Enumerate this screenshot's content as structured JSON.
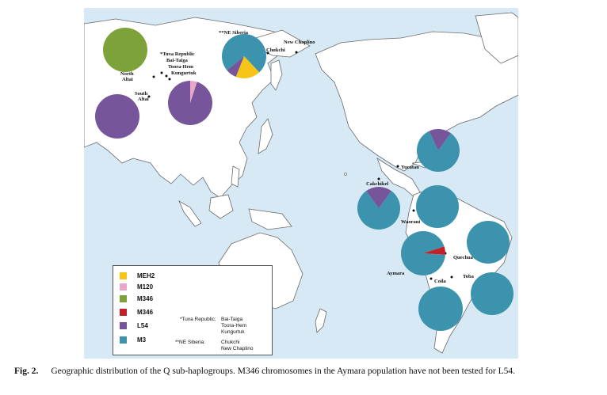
{
  "colors": {
    "sea": "#d6e9f5",
    "land": "#ffffff",
    "MEH2": "#f5c518",
    "M120": "#e8a6c9",
    "M346_green": "#7ea23a",
    "M346_red": "#c4202a",
    "L54": "#76559a",
    "M3": "#3c93ad"
  },
  "places": {
    "ne_siberia": "**NE Siberia",
    "new_chaplino": "New Chaplino",
    "chukchi": "Chukchi",
    "tuva": "*Tuva Republic",
    "bai_taiga": "Bai-Taiga",
    "toora_hem": "Toora-Hem",
    "kungurtuk": "Kungurtuk",
    "north_altai_1": "North",
    "north_altai_2": "Altai",
    "south_altai_1": "South",
    "south_altai_2": "Altai",
    "yucatan": "Yucatan",
    "cakchikel": "Cakchikel",
    "waorani": "Waorani",
    "quechua": "Quechua",
    "aymara": "Aymara",
    "coila": "Coila",
    "toba": "Toba"
  },
  "pies": [
    {
      "id": "north-altai",
      "slices": [
        {
          "group": "M346",
          "value": 1.0
        }
      ]
    },
    {
      "id": "south-altai",
      "slices": [
        {
          "group": "L54",
          "value": 1.0
        }
      ]
    },
    {
      "id": "tuva",
      "slices": [
        {
          "group": "L54",
          "value": 0.95
        },
        {
          "group": "M120",
          "value": 0.05
        }
      ]
    },
    {
      "id": "ne-siberia",
      "slices": [
        {
          "group": "M3",
          "value": 0.74
        },
        {
          "group": "MEH2",
          "value": 0.18
        },
        {
          "group": "L54",
          "value": 0.08
        }
      ]
    },
    {
      "id": "yucatan",
      "slices": [
        {
          "group": "M3",
          "value": 0.83
        },
        {
          "group": "L54",
          "value": 0.17
        }
      ]
    },
    {
      "id": "cakchikel",
      "slices": [
        {
          "group": "M3",
          "value": 0.8
        },
        {
          "group": "L54",
          "value": 0.2
        }
      ]
    },
    {
      "id": "waorani",
      "slices": [
        {
          "group": "M3",
          "value": 1.0
        }
      ]
    },
    {
      "id": "quechua",
      "slices": [
        {
          "group": "M3",
          "value": 1.0
        }
      ]
    },
    {
      "id": "aymara",
      "slices": [
        {
          "group": "M3",
          "value": 0.94
        },
        {
          "group": "M346",
          "value": 0.06
        }
      ]
    },
    {
      "id": "toba",
      "slices": [
        {
          "group": "M3",
          "value": 1.0
        }
      ]
    },
    {
      "id": "coila",
      "slices": [
        {
          "group": "M3",
          "value": 1.0
        }
      ]
    }
  ],
  "legend": {
    "items": [
      {
        "label": "MEH2",
        "color": "#f5c518"
      },
      {
        "label": "M120",
        "color": "#e8a6c9"
      },
      {
        "label": "M346",
        "color": "#7ea23a"
      },
      {
        "label": "M346",
        "color": "#c4202a"
      },
      {
        "label": "L54",
        "color": "#76559a"
      },
      {
        "label": "M3",
        "color": "#3c93ad"
      }
    ],
    "tuva_key": "*Tuva Republic:",
    "tuva_value": "Bai-Taiga\nToora-Hem\nKungurtuk",
    "ne_key": "**NE Siberia:",
    "ne_value": "Chukchi\nNew Chaplino"
  },
  "caption": {
    "fig": "Fig. 2.",
    "text": "Geographic distribution of the Q sub-haplogroups. M346 chromosomes in the Aymara population have not been tested for L54."
  }
}
